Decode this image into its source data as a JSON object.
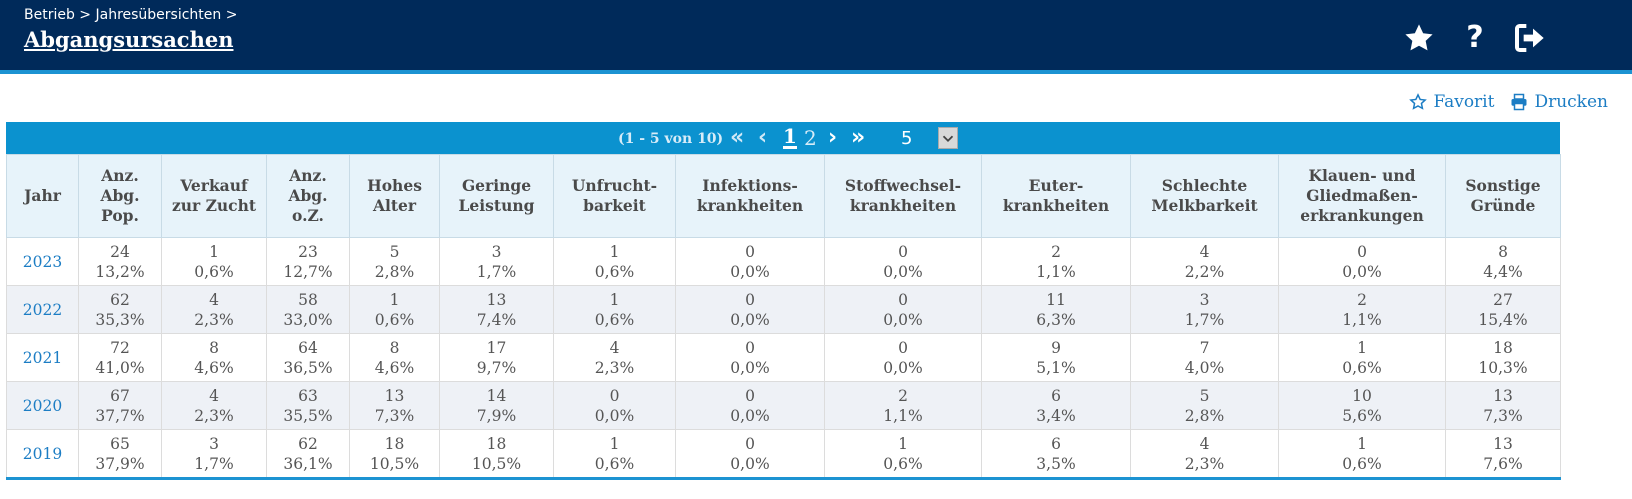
{
  "header": {
    "breadcrumb": "Betrieb > Jahresübersichten >",
    "title": "Abgangsursachen"
  },
  "icons": [
    "star-icon",
    "help-icon",
    "logout-icon",
    "star-outline-icon",
    "printer-icon",
    "chevron-down-icon"
  ],
  "colors": {
    "header_bg": "#002a5a",
    "accent": "#1c93d2",
    "link": "#1c7dc4",
    "paginator_bg": "#0b92cf"
  },
  "actions": {
    "favorite": "Favorit",
    "print": "Drucken"
  },
  "paginator": {
    "count": "(1 - 5 von 10)",
    "pages": [
      "1",
      "2"
    ],
    "current_page": "1",
    "rows_per_page": "5"
  },
  "table": {
    "columns": [
      "Jahr",
      "Anz. Abg. Pop.",
      "Verkauf zur Zucht",
      "Anz. Abg. o.Z.",
      "Hohes Alter",
      "Geringe Leistung",
      "Unfrucht-barkeit",
      "Infektions-krankheiten",
      "Stoffwechsel-krankheiten",
      "Euter-krankheiten",
      "Schlechte Melkbarkeit",
      "Klauen- und Gliedmaßen-erkrankungen",
      "Sonstige Gründe"
    ],
    "rows": [
      {
        "year": "2023",
        "cells": [
          [
            "24",
            "13,2%"
          ],
          [
            "1",
            "0,6%"
          ],
          [
            "23",
            "12,7%"
          ],
          [
            "5",
            "2,8%"
          ],
          [
            "3",
            "1,7%"
          ],
          [
            "1",
            "0,6%"
          ],
          [
            "0",
            "0,0%"
          ],
          [
            "0",
            "0,0%"
          ],
          [
            "2",
            "1,1%"
          ],
          [
            "4",
            "2,2%"
          ],
          [
            "0",
            "0,0%"
          ],
          [
            "8",
            "4,4%"
          ]
        ]
      },
      {
        "year": "2022",
        "cells": [
          [
            "62",
            "35,3%"
          ],
          [
            "4",
            "2,3%"
          ],
          [
            "58",
            "33,0%"
          ],
          [
            "1",
            "0,6%"
          ],
          [
            "13",
            "7,4%"
          ],
          [
            "1",
            "0,6%"
          ],
          [
            "0",
            "0,0%"
          ],
          [
            "0",
            "0,0%"
          ],
          [
            "11",
            "6,3%"
          ],
          [
            "3",
            "1,7%"
          ],
          [
            "2",
            "1,1%"
          ],
          [
            "27",
            "15,4%"
          ]
        ]
      },
      {
        "year": "2021",
        "cells": [
          [
            "72",
            "41,0%"
          ],
          [
            "8",
            "4,6%"
          ],
          [
            "64",
            "36,5%"
          ],
          [
            "8",
            "4,6%"
          ],
          [
            "17",
            "9,7%"
          ],
          [
            "4",
            "2,3%"
          ],
          [
            "0",
            "0,0%"
          ],
          [
            "0",
            "0,0%"
          ],
          [
            "9",
            "5,1%"
          ],
          [
            "7",
            "4,0%"
          ],
          [
            "1",
            "0,6%"
          ],
          [
            "18",
            "10,3%"
          ]
        ]
      },
      {
        "year": "2020",
        "cells": [
          [
            "67",
            "37,7%"
          ],
          [
            "4",
            "2,3%"
          ],
          [
            "63",
            "35,5%"
          ],
          [
            "13",
            "7,3%"
          ],
          [
            "14",
            "7,9%"
          ],
          [
            "0",
            "0,0%"
          ],
          [
            "0",
            "0,0%"
          ],
          [
            "2",
            "1,1%"
          ],
          [
            "6",
            "3,4%"
          ],
          [
            "5",
            "2,8%"
          ],
          [
            "10",
            "5,6%"
          ],
          [
            "13",
            "7,3%"
          ]
        ]
      },
      {
        "year": "2019",
        "cells": [
          [
            "65",
            "37,9%"
          ],
          [
            "3",
            "1,7%"
          ],
          [
            "62",
            "36,1%"
          ],
          [
            "18",
            "10,5%"
          ],
          [
            "18",
            "10,5%"
          ],
          [
            "1",
            "0,6%"
          ],
          [
            "0",
            "0,0%"
          ],
          [
            "1",
            "0,6%"
          ],
          [
            "6",
            "3,5%"
          ],
          [
            "4",
            "2,3%"
          ],
          [
            "1",
            "0,6%"
          ],
          [
            "13",
            "7,6%"
          ]
        ]
      }
    ]
  }
}
